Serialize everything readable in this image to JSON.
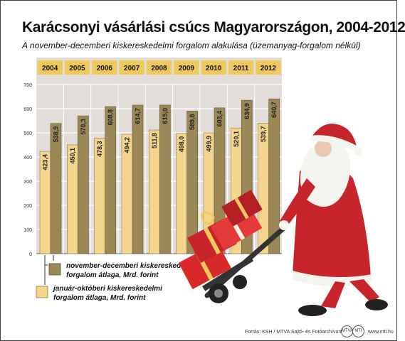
{
  "header": {
    "title": "Karácsonyi vásárlási csúcs Magyarországon, 2004-2012",
    "subtitle": "A november-decemberi kiskereskedelmi forgalom alakulása (üzemanyag-forgalom nélkül)"
  },
  "chart_data": {
    "type": "bar",
    "categories": [
      "2004",
      "2005",
      "2006",
      "2007",
      "2008",
      "2009",
      "2010",
      "2011",
      "2012"
    ],
    "series": [
      {
        "name": "január-októberi kiskereskedelmi forgalom átlaga, Mrd. forint",
        "values": [
          423.4,
          450.1,
          478.3,
          494.2,
          511.8,
          498.0,
          499.9,
          520.1,
          539.7
        ],
        "labels": [
          "423,4",
          "450,1",
          "478,3",
          "494,2",
          "511,8",
          "498,0",
          "499,9",
          "520,1",
          "539,7"
        ],
        "color": "#f5d58e"
      },
      {
        "name": "november-decemberi kiskereskedelmi forgalom átlaga, Mrd. forint",
        "values": [
          538.9,
          570.3,
          608.8,
          614.7,
          615.0,
          589.8,
          603.4,
          634.9,
          640.7
        ],
        "labels": [
          "538,9",
          "570,3",
          "608,8",
          "614,7",
          "615,0",
          "589,8",
          "603,4",
          "634,9",
          "640,7"
        ],
        "color": "#9c8757"
      }
    ],
    "y_ticks": [
      "0",
      "100",
      "200",
      "300",
      "400",
      "500",
      "600",
      "700"
    ],
    "ylim": [
      0,
      700
    ],
    "grid": true,
    "legend_position": "bottom-left",
    "legend": [
      {
        "line1": "november-decemberi kiskereskedelmi",
        "line2": "forgalom átlaga, Mrd. forint"
      },
      {
        "line1": "január-októberi kiskereskedelmi",
        "line2": "forgalom átlaga, Mrd. forint"
      }
    ]
  },
  "footer": {
    "source": "Forrás: KSH / MTVA Sajtó- és Fotóarchívum / MTI",
    "logo1": "MTVA",
    "logo2": "MTI",
    "url": "www.mti.hu"
  },
  "colors": {
    "background_band": "#e2ddd8",
    "header_band": "#f0c95c",
    "grid": "#ffffff",
    "santa_red": "#c8242b"
  },
  "illustration": "santa-with-gift-trolley"
}
